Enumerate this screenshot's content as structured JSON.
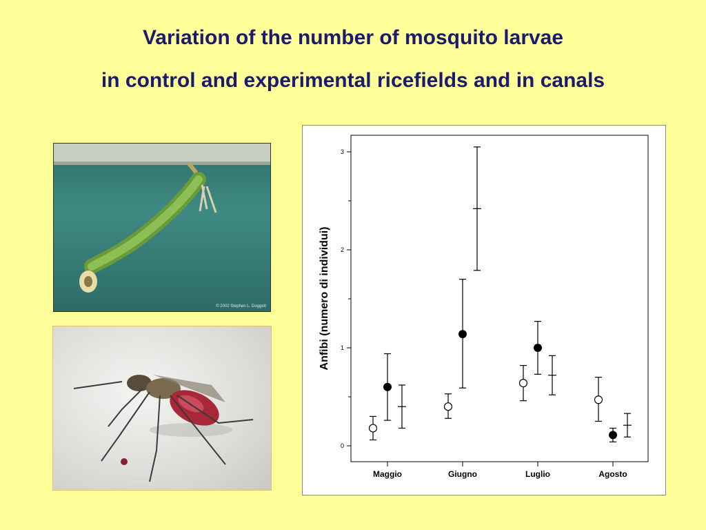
{
  "slide": {
    "title_line1": "Variation of the number of mosquito larvae",
    "title_line2": "in control and experimental ricefields and in canals",
    "larva_photo_credit": "© 2002 Stephen L. Doggett"
  },
  "chart_data": {
    "type": "scatter",
    "ylabel": "Anfibi (numero di individui)",
    "ylim": [
      0,
      3
    ],
    "yticks": [
      0,
      1,
      2,
      3
    ],
    "categories": [
      "Maggio",
      "Giugno",
      "Luglio",
      "Agosto"
    ],
    "grid": false,
    "series": [
      {
        "marker": "open-circle",
        "points": [
          {
            "category": "Maggio",
            "value": 0.18,
            "low": 0.06,
            "high": 0.3
          },
          {
            "category": "Giugno",
            "value": 0.4,
            "low": 0.28,
            "high": 0.53
          },
          {
            "category": "Luglio",
            "value": 0.64,
            "low": 0.46,
            "high": 0.82
          },
          {
            "category": "Agosto",
            "value": 0.47,
            "low": 0.25,
            "high": 0.7
          }
        ]
      },
      {
        "marker": "filled-circle",
        "points": [
          {
            "category": "Maggio",
            "value": 0.6,
            "low": 0.26,
            "high": 0.94
          },
          {
            "category": "Giugno",
            "value": 1.14,
            "low": 0.59,
            "high": 1.7
          },
          {
            "category": "Luglio",
            "value": 1.0,
            "low": 0.73,
            "high": 1.27
          },
          {
            "category": "Agosto",
            "value": 0.11,
            "low": 0.04,
            "high": 0.18
          }
        ]
      },
      {
        "marker": "dash",
        "points": [
          {
            "category": "Maggio",
            "value": 0.4,
            "low": 0.18,
            "high": 0.62
          },
          {
            "category": "Giugno",
            "value": 2.42,
            "low": 1.79,
            "high": 3.05
          },
          {
            "category": "Luglio",
            "value": 0.72,
            "low": 0.52,
            "high": 0.92
          },
          {
            "category": "Agosto",
            "value": 0.21,
            "low": 0.09,
            "high": 0.33
          }
        ]
      }
    ]
  }
}
